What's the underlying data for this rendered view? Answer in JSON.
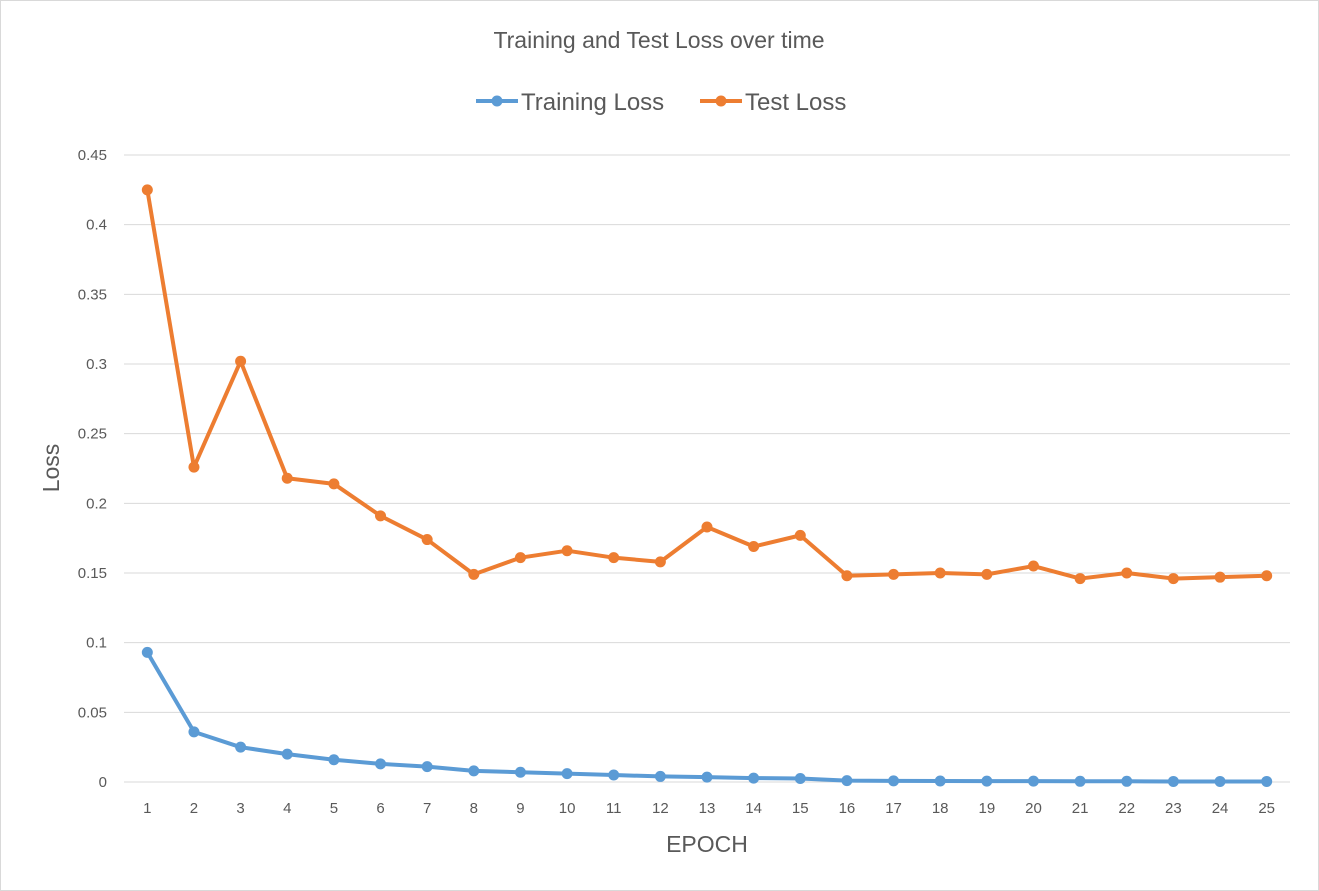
{
  "chart_data": {
    "type": "line",
    "title": "Training and Test Loss over time",
    "xlabel": "EPOCH",
    "ylabel": "Loss",
    "categories": [
      "1",
      "2",
      "3",
      "4",
      "5",
      "6",
      "7",
      "8",
      "9",
      "10",
      "11",
      "12",
      "13",
      "14",
      "15",
      "16",
      "17",
      "18",
      "19",
      "20",
      "21",
      "22",
      "23",
      "24",
      "25"
    ],
    "yticks": [
      "0",
      "0.05",
      "0.1",
      "0.15",
      "0.2",
      "0.25",
      "0.3",
      "0.35",
      "0.4",
      "0.45"
    ],
    "ylim": [
      0,
      0.45
    ],
    "grid": true,
    "legend_position": "top",
    "series": [
      {
        "name": "Training Loss",
        "color": "#5b9bd5",
        "values": [
          0.093,
          0.036,
          0.025,
          0.02,
          0.016,
          0.013,
          0.011,
          0.008,
          0.007,
          0.006,
          0.005,
          0.004,
          0.0035,
          0.0028,
          0.0025,
          0.001,
          0.0008,
          0.0007,
          0.0006,
          0.0006,
          0.0005,
          0.0005,
          0.0004,
          0.0004,
          0.0004
        ]
      },
      {
        "name": "Test Loss",
        "color": "#ed7d31",
        "values": [
          0.425,
          0.226,
          0.302,
          0.218,
          0.214,
          0.191,
          0.174,
          0.149,
          0.161,
          0.166,
          0.161,
          0.158,
          0.183,
          0.169,
          0.177,
          0.148,
          0.149,
          0.15,
          0.149,
          0.155,
          0.146,
          0.15,
          0.146,
          0.147,
          0.148
        ]
      }
    ]
  }
}
